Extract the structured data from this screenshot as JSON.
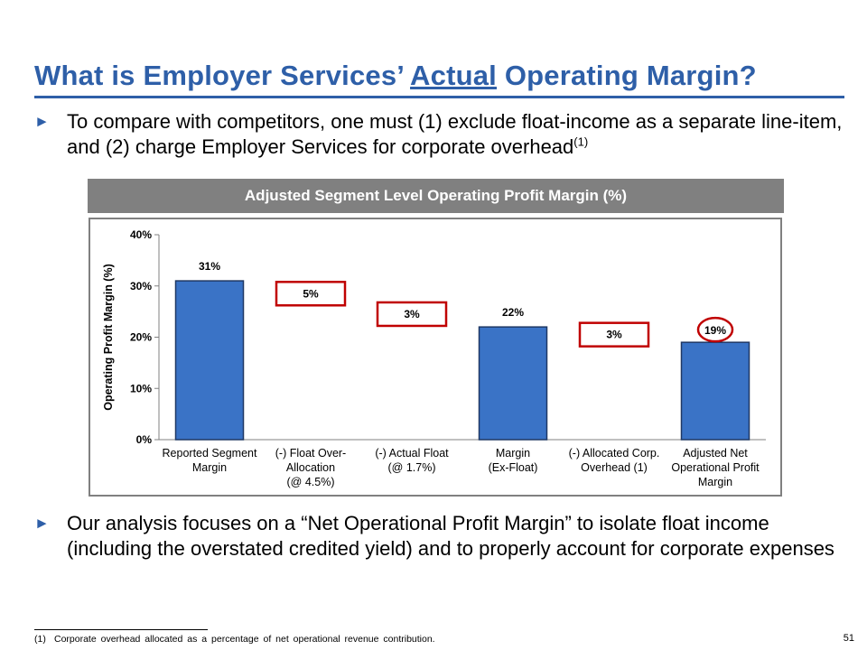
{
  "slide": {
    "title_part1": "What is Employer Services’ ",
    "title_underlined": "Actual",
    "title_part2": " Operating Margin?",
    "bullet_1_main": "To compare with competitors, one must (1) exclude float-income as a separate line-item, and (2) charge Employer Services for corporate overhead",
    "bullet_1_sup": "(1)",
    "bullet_2": "Our analysis focuses on a “Net Operational Profit Margin” to isolate float income (including the overstated credited yield) and to properly account for corporate expenses",
    "bullet_icon": "right-triangle-arrow",
    "footnote_number": "(1)",
    "footnote_text": "Corporate overhead allocated as a percentage of net operational revenue contribution.",
    "page_number": "51",
    "colors": {
      "title": "#2e5fa8",
      "bar": "#3a73c6",
      "bar_border": "#1f3864",
      "highlight": "#c00000",
      "header": "#808080"
    }
  },
  "chart_data": {
    "type": "bar",
    "title": "Adjusted Segment Level Operating Profit Margin (%)",
    "ylabel": "Operating Profit Margin (%)",
    "xlabel": "",
    "ylim": [
      0,
      40
    ],
    "yticks": [
      0,
      10,
      20,
      30,
      40
    ],
    "ytick_labels": [
      "0%",
      "10%",
      "20%",
      "30%",
      "40%"
    ],
    "grid": false,
    "legend": "none",
    "categories": [
      [
        "Reported Segment",
        "Margin"
      ],
      [
        "(-) Float Over-",
        "Allocation",
        "(@ 4.5%)"
      ],
      [
        "(-) Actual Float",
        "(@ 1.7%)"
      ],
      [
        "Margin",
        "(Ex-Float)"
      ],
      [
        "(-) Allocated Corp.",
        "Overhead (1)"
      ],
      [
        "Adjusted Net",
        "Operational Profit",
        "Margin"
      ]
    ],
    "values": [
      31,
      5,
      3,
      22,
      3,
      19
    ],
    "kind": [
      "total",
      "deduction",
      "deduction",
      "total",
      "deduction",
      "total"
    ],
    "data_labels": [
      "31%",
      "5%",
      "3%",
      "22%",
      "3%",
      "19%"
    ],
    "highlighted": [
      false,
      true,
      true,
      false,
      true,
      true
    ]
  }
}
